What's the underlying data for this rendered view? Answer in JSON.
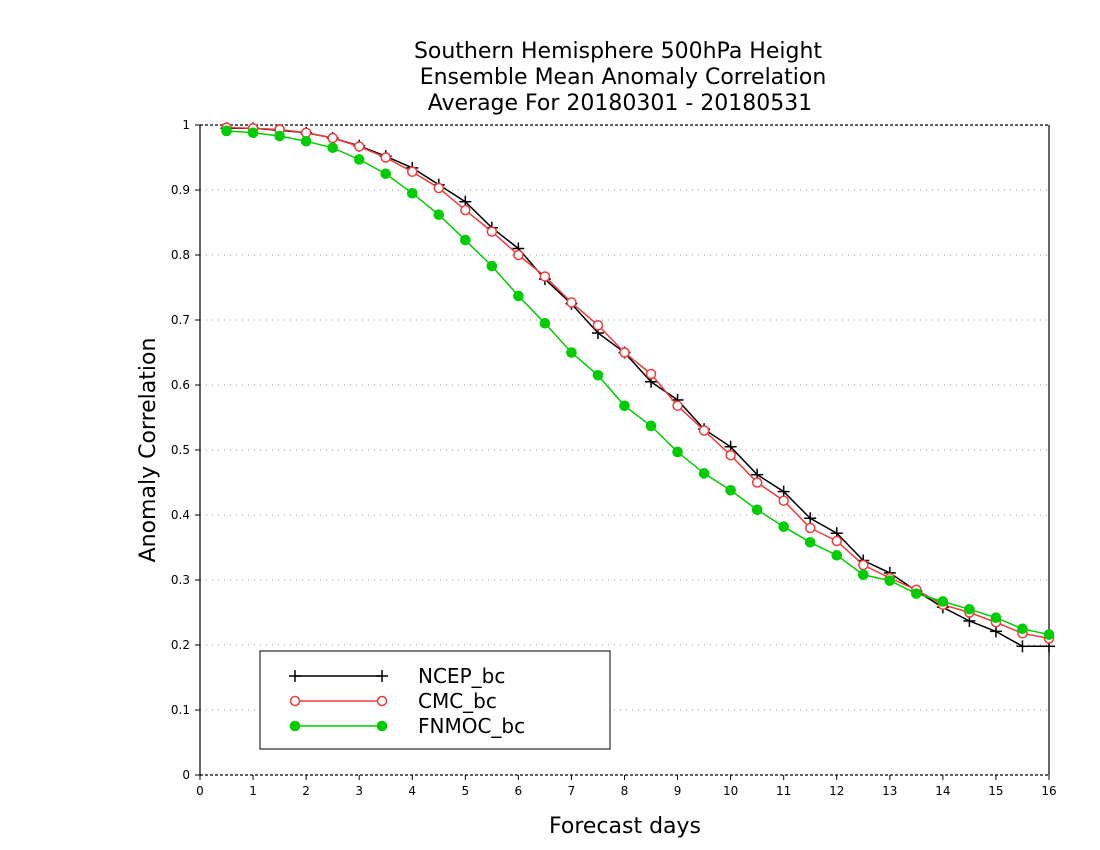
{
  "chart_data": {
    "type": "line",
    "title_lines": [
      "Southern Hemisphere 500hPa Height",
      "Ensemble Mean Anomaly Correlation",
      "Average For 20180301 - 20180531"
    ],
    "xlabel": "Forecast days",
    "ylabel": "Anomaly Correlation",
    "xlim": [
      0,
      16
    ],
    "ylim": [
      0,
      1
    ],
    "x_ticks": [
      "0",
      "1",
      "2",
      "3",
      "4",
      "5",
      "6",
      "7",
      "8",
      "9",
      "10",
      "11",
      "12",
      "13",
      "14",
      "15",
      "16"
    ],
    "y_ticks": [
      "0",
      "0.1",
      "0.2",
      "0.3",
      "0.4",
      "0.5",
      "0.6",
      "0.7",
      "0.8",
      "0.9",
      "1"
    ],
    "grid": true,
    "legend_position": "bottom-left",
    "x": [
      0.5,
      1,
      1.5,
      2,
      2.5,
      3,
      3.5,
      4,
      4.5,
      5,
      5.5,
      6,
      6.5,
      7,
      7.5,
      8,
      8.5,
      9,
      9.5,
      10,
      10.5,
      11,
      11.5,
      12,
      12.5,
      13,
      13.5,
      14,
      14.5,
      15,
      15.5,
      16
    ],
    "series": [
      {
        "name": "NCEP_bc",
        "color": "#000000",
        "marker": "plus",
        "values": [
          0.995,
          0.995,
          0.992,
          0.988,
          0.98,
          0.968,
          0.952,
          0.934,
          0.908,
          0.882,
          0.842,
          0.81,
          0.763,
          0.725,
          0.68,
          0.65,
          0.605,
          0.577,
          0.532,
          0.505,
          0.462,
          0.436,
          0.395,
          0.372,
          0.33,
          0.311,
          0.283,
          0.258,
          0.237,
          0.221,
          0.198,
          0.198
        ]
      },
      {
        "name": "CMC_bc",
        "color": "#ee3b3b",
        "marker": "open-circle",
        "values": [
          0.996,
          0.995,
          0.993,
          0.988,
          0.98,
          0.967,
          0.95,
          0.928,
          0.903,
          0.869,
          0.836,
          0.8,
          0.767,
          0.727,
          0.692,
          0.65,
          0.617,
          0.568,
          0.53,
          0.492,
          0.45,
          0.422,
          0.38,
          0.36,
          0.323,
          0.303,
          0.285,
          0.262,
          0.25,
          0.235,
          0.218,
          0.21
        ]
      },
      {
        "name": "FNMOC_bc",
        "color": "#00cc00",
        "marker": "filled-circle",
        "values": [
          0.991,
          0.988,
          0.983,
          0.975,
          0.965,
          0.947,
          0.925,
          0.895,
          0.862,
          0.823,
          0.783,
          0.737,
          0.695,
          0.65,
          0.615,
          0.568,
          0.537,
          0.497,
          0.464,
          0.438,
          0.408,
          0.382,
          0.358,
          0.338,
          0.308,
          0.299,
          0.279,
          0.267,
          0.255,
          0.242,
          0.225,
          0.216
        ]
      }
    ]
  }
}
